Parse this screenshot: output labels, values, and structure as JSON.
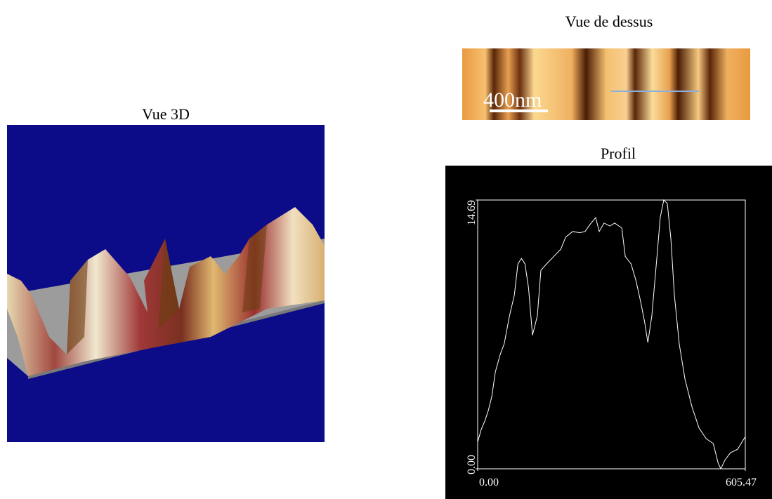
{
  "view_3d": {
    "title": "Vue 3D"
  },
  "top_view": {
    "title": "Vue de dessus",
    "scale_bar": "400nm"
  },
  "chart_data": {
    "type": "line",
    "title": "Profil",
    "x": [
      0,
      8,
      16,
      24,
      32,
      40,
      51,
      60,
      72,
      83,
      91,
      99,
      107,
      115,
      124,
      135,
      143,
      156,
      172,
      188,
      199,
      215,
      231,
      243,
      254,
      267,
      275,
      286,
      299,
      310,
      326,
      334,
      347,
      358,
      369,
      378,
      385,
      394,
      405,
      413,
      421,
      429,
      437,
      445,
      456,
      469,
      485,
      501,
      517,
      533,
      544,
      550,
      560,
      572,
      588,
      605.47
    ],
    "series": [
      {
        "color": "#ffffff",
        "values": [
          1.46,
          2.15,
          2.6,
          3.18,
          3.95,
          5.3,
          6.25,
          6.83,
          8.36,
          9.5,
          11.2,
          11.5,
          11.2,
          9.9,
          7.3,
          8.36,
          10.85,
          11.2,
          11.6,
          12.0,
          12.66,
          12.97,
          12.9,
          12.97,
          13.35,
          13.73,
          12.97,
          13.43,
          13.27,
          13.43,
          13.16,
          11.6,
          11.2,
          10.3,
          9.1,
          7.98,
          6.9,
          8.36,
          11.43,
          13.73,
          14.69,
          14.5,
          12.6,
          9.5,
          6.83,
          4.9,
          3.37,
          2.22,
          1.65,
          1.38,
          0.31,
          0,
          0.5,
          0.88,
          1.07,
          1.76
        ]
      }
    ],
    "xlim": [
      0,
      605.47
    ],
    "ylim": [
      0,
      14.69
    ],
    "xticks": [
      {
        "value": 0,
        "label": "0.00"
      },
      {
        "value": 605.47,
        "label": "605.47"
      }
    ],
    "yticks": [
      {
        "value": 0,
        "label": "0.00"
      },
      {
        "value": 14.69,
        "label": "14.69"
      }
    ],
    "background": "#000000"
  }
}
